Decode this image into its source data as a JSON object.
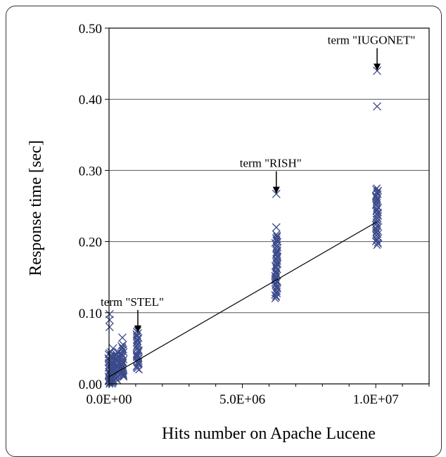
{
  "chart_data": {
    "type": "scatter",
    "xlabel": "Hits number on Apache Lucene",
    "ylabel": "Response time [sec]",
    "xlim": [
      0,
      12000000
    ],
    "ylim": [
      0,
      0.5
    ],
    "grid": "horizontal",
    "x_ticks": [
      {
        "value": 0,
        "label": "0.0E+00"
      },
      {
        "value": 5000000,
        "label": "5.0E+06"
      },
      {
        "value": 10000000,
        "label": "1.0E+07"
      }
    ],
    "y_ticks": [
      {
        "value": 0.0,
        "label": "0.00"
      },
      {
        "value": 0.1,
        "label": "0.10"
      },
      {
        "value": 0.2,
        "label": "0.20"
      },
      {
        "value": 0.3,
        "label": "0.30"
      },
      {
        "value": 0.4,
        "label": "0.40"
      },
      {
        "value": 0.5,
        "label": "0.50"
      }
    ],
    "marker_color": "#3b4a8a",
    "series": [
      {
        "marker": "x",
        "clusters": [
          {
            "x": 20000,
            "y_min": 0.0,
            "y_max": 0.045,
            "outliers": [
              0.098,
              0.09,
              0.08
            ]
          },
          {
            "x": 150000,
            "y_min": 0.0,
            "y_max": 0.04,
            "outliers": [
              0.05
            ]
          },
          {
            "x": 300000,
            "y_min": 0.005,
            "y_max": 0.045,
            "outliers": []
          },
          {
            "x": 500000,
            "y_min": 0.01,
            "y_max": 0.055,
            "outliers": [
              0.065
            ]
          },
          {
            "x": 1080000,
            "y_min": 0.02,
            "y_max": 0.075,
            "outliers": []
          },
          {
            "x": 6270000,
            "y_min": 0.12,
            "y_max": 0.21,
            "outliers": [
              0.22,
              0.267
            ]
          },
          {
            "x": 10050000,
            "y_min": 0.195,
            "y_max": 0.275,
            "outliers": [
              0.39,
              0.44
            ]
          }
        ]
      }
    ],
    "trendline": {
      "x": [
        0,
        10050000
      ],
      "y": [
        0.01,
        0.228
      ]
    },
    "annotations": [
      {
        "text": "term \"STEL\"",
        "x": 1080000,
        "y": 0.09
      },
      {
        "text": "term \"RISH\"",
        "x": 6270000,
        "y": 0.285
      },
      {
        "text": "term \"IUGONET\"",
        "x": 10050000,
        "y": 0.458
      }
    ]
  }
}
